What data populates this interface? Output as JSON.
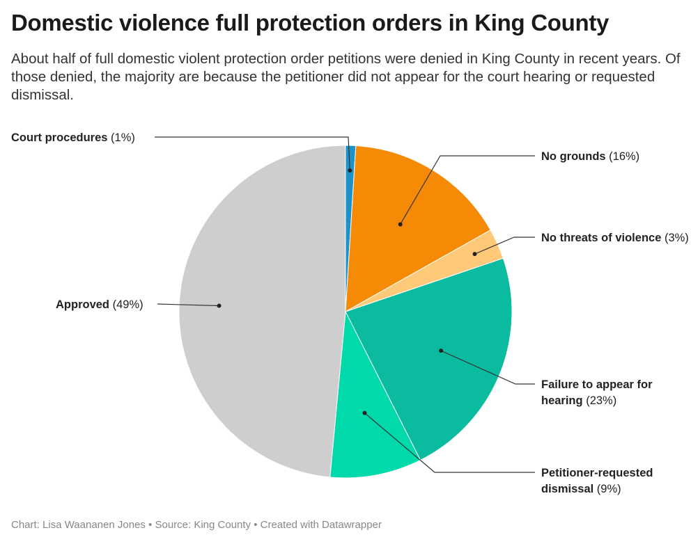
{
  "header": {
    "title": "Domestic violence full protection orders in King County",
    "subtitle": "About half of full domestic violent protection order petitions were denied in King County in recent years. Of those denied, the majority are because the petitioner did not appear for the court hearing or requested dismissal."
  },
  "chart_data": {
    "type": "pie",
    "title": "Domestic violence full protection orders in King County",
    "slices": [
      {
        "name": "Court procedures",
        "value": 1,
        "value_label": "(1%)",
        "label_lines": [
          "Court procedures"
        ],
        "color": "#1f93c9"
      },
      {
        "name": "No grounds",
        "value": 16,
        "value_label": "(16%)",
        "label_lines": [
          "No grounds"
        ],
        "color": "#f58a07"
      },
      {
        "name": "No threats of violence",
        "value": 3,
        "value_label": "(3%)",
        "label_lines": [
          "No threats of violence"
        ],
        "color": "#ffc97a"
      },
      {
        "name": "Failure to appear for hearing",
        "value": 23,
        "value_label": "(23%)",
        "label_lines": [
          "Failure to appear for",
          "hearing"
        ],
        "color": "#0bbba0"
      },
      {
        "name": "Petitioner-requested dismissal",
        "value": 9,
        "value_label": "(9%)",
        "label_lines": [
          "Petitioner-requested",
          "dismissal"
        ],
        "color": "#00d9aa"
      },
      {
        "name": "Approved",
        "value": 49,
        "value_label": "(49%)",
        "label_lines": [
          "Approved"
        ],
        "color": "#cecece"
      }
    ]
  },
  "footer": {
    "text": "Chart: Lisa Waananen Jones • Source: King County • Created with Datawrapper"
  }
}
